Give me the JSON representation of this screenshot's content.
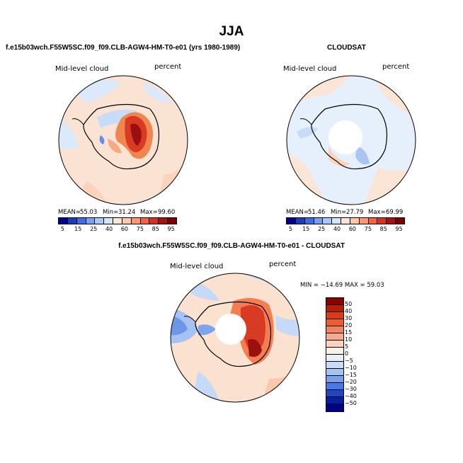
{
  "figure": {
    "title": "JJA"
  },
  "panels": [
    {
      "case_title": "f.e15b03wch.F55W5SC.f09_f09.CLB-AGW4-HM-T0-e01 (yrs 1980-1989)",
      "variable": "Mid-level cloud",
      "units": "percent",
      "stats": {
        "mean_label": "MEAN=",
        "mean": "55.03",
        "min_label": "Min=",
        "min": "31.24",
        "max_label": "Max=",
        "max": "99.60"
      }
    },
    {
      "case_title": "CLOUDSAT",
      "variable": "Mid-level cloud",
      "units": "percent",
      "stats": {
        "mean_label": "MEAN=",
        "mean": "51.46",
        "min_label": "Min=",
        "min": "27.79",
        "max_label": "Max=",
        "max": "69.99"
      }
    },
    {
      "case_title": "f.e15b03wch.F55W5SC.f09_f09.CLB-AGW4-HM-T0-e01 - CLOUDSAT",
      "variable": "Mid-level cloud",
      "units": "percent",
      "stats_line": "MIN = −14.69  MAX =   59.03"
    }
  ],
  "colorbar_abs": {
    "labels": [
      "5",
      "15",
      "25",
      "40",
      "60",
      "75",
      "85",
      "95"
    ],
    "colors": [
      "#00008b",
      "#1e3cb4",
      "#3c6ee6",
      "#78a0f0",
      "#aac8f5",
      "#d2e6fa",
      "#ffe6d2",
      "#ffc8aa",
      "#ff9670",
      "#f0643c",
      "#d2321e",
      "#a01414",
      "#780000"
    ]
  },
  "colorbar_diff": {
    "labels": [
      "50",
      "40",
      "30",
      "20",
      "15",
      "10",
      "5",
      "0",
      "−5",
      "−10",
      "−15",
      "−20",
      "−30",
      "−40",
      "−50"
    ],
    "colors": [
      "#8b0000",
      "#b41e0a",
      "#dc3c14",
      "#f05a32",
      "#f5825a",
      "#f8aa8c",
      "#fcd2be",
      "#fff0e6",
      "#e6f0fc",
      "#c8dcfa",
      "#a0c4f5",
      "#78a0f0",
      "#4678e6",
      "#1e46c8",
      "#0a1ea0",
      "#00008b"
    ]
  }
}
